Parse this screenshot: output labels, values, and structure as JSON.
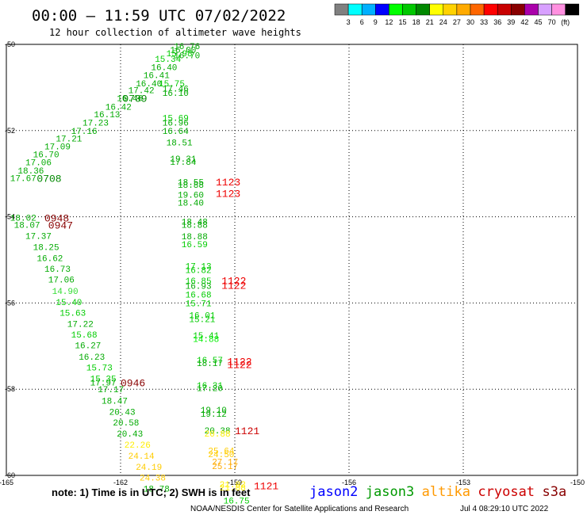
{
  "header": {
    "title": "00:00 – 11:59 UTC 07/02/2022",
    "subtitle": "12 hour collection of altimeter wave heights"
  },
  "legend": {
    "colors": [
      "#808080",
      "#00ffff",
      "#00b0ff",
      "#0000ff",
      "#00ff00",
      "#00c800",
      "#008800",
      "#ffff00",
      "#ffd200",
      "#ffaa00",
      "#ff6600",
      "#ff0000",
      "#c80000",
      "#880000",
      "#aa00aa",
      "#d8a0ff",
      "#ff90e0",
      "#000000"
    ],
    "labels": [
      "3",
      "6",
      "9",
      "12",
      "15",
      "18",
      "21",
      "24",
      "27",
      "30",
      "33",
      "36",
      "39",
      "42",
      "45",
      "70",
      "(ft)"
    ]
  },
  "footer": {
    "note": "note: 1) Time is in UTC; 2) SWH is in feet",
    "credit": "NOAA/NESDIS Center for Satellite Applications and Research",
    "timestamp": "Jul  4 08:29:10 UTC 2022",
    "satellites": [
      {
        "name": "jason2",
        "color": "#0000ff"
      },
      {
        "name": "jason3",
        "color": "#009900"
      },
      {
        "name": "altika",
        "color": "#ff9900"
      },
      {
        "name": "cryosat",
        "color": "#cc0000"
      },
      {
        "name": "s3a",
        "color": "#880000"
      }
    ]
  },
  "chart_data": {
    "type": "scatter",
    "xlim": [
      -165,
      -150
    ],
    "ylim": [
      -60,
      -50
    ],
    "x_ticks": [
      "-165",
      "-162",
      "-159",
      "-156",
      "-153",
      "-150"
    ],
    "y_ticks": [
      "-50",
      "-52",
      "-54",
      "-56",
      "-58",
      "-60"
    ],
    "grid": true,
    "points": [
      {
        "x": -160.6,
        "y": -50.04,
        "t": "16.76",
        "c": "#00aa00"
      },
      {
        "x": -160.7,
        "y": -50.12,
        "t": "16.00",
        "c": "#00aa00"
      },
      {
        "x": -160.8,
        "y": -50.2,
        "t": "15.98",
        "c": "#00cc00"
      },
      {
        "x": -160.6,
        "y": -50.25,
        "t": "16.70",
        "c": "#00aa00"
      },
      {
        "x": -161.1,
        "y": -50.33,
        "t": "15.34",
        "c": "#00cc00"
      },
      {
        "x": -161.2,
        "y": -50.52,
        "t": "16.40",
        "c": "#00aa00"
      },
      {
        "x": -161.4,
        "y": -50.71,
        "t": "16.41",
        "c": "#00aa00"
      },
      {
        "x": -161.6,
        "y": -50.9,
        "t": "16.40",
        "c": "#00aa00"
      },
      {
        "x": -161.8,
        "y": -51.06,
        "t": "17.42",
        "c": "#00aa00"
      },
      {
        "x": -162.1,
        "y": -51.24,
        "t": "16.46",
        "c": "#00aa00"
      },
      {
        "x": -162.4,
        "y": -51.44,
        "t": "16.42",
        "c": "#00aa00"
      },
      {
        "x": -162.7,
        "y": -51.62,
        "t": "16.13",
        "c": "#00aa00"
      },
      {
        "x": -163.0,
        "y": -51.81,
        "t": "17.23",
        "c": "#00aa00"
      },
      {
        "x": -163.3,
        "y": -52.0,
        "t": "17.16",
        "c": "#00aa00"
      },
      {
        "x": -163.7,
        "y": -52.18,
        "t": "17.21",
        "c": "#00aa00"
      },
      {
        "x": -164.0,
        "y": -52.36,
        "t": "17.09",
        "c": "#00aa00"
      },
      {
        "x": -164.3,
        "y": -52.55,
        "t": "16.70",
        "c": "#00aa00"
      },
      {
        "x": -164.5,
        "y": -52.73,
        "t": "17.06",
        "c": "#00aa00"
      },
      {
        "x": -164.7,
        "y": -52.92,
        "t": "18.36",
        "c": "#00aa00"
      },
      {
        "x": -164.9,
        "y": -53.1,
        "t": "17.67",
        "c": "#00aa00"
      },
      {
        "x": -161.0,
        "y": -50.9,
        "t": "15.75",
        "c": "#00cc00"
      },
      {
        "x": -160.9,
        "y": -51.02,
        "t": "17.46",
        "c": "#00aa00"
      },
      {
        "x": -160.9,
        "y": -51.12,
        "t": "16.10",
        "c": "#00aa00"
      },
      {
        "x": -160.9,
        "y": -51.7,
        "t": "15.69",
        "c": "#00cc00"
      },
      {
        "x": -160.9,
        "y": -51.81,
        "t": "16.96",
        "c": "#00aa00"
      },
      {
        "x": -160.9,
        "y": -52.0,
        "t": "16.64",
        "c": "#00aa00"
      },
      {
        "x": -160.8,
        "y": -52.27,
        "t": "18.51",
        "c": "#00aa00"
      },
      {
        "x": -160.7,
        "y": -52.65,
        "t": "19.31",
        "c": "#00aa00"
      },
      {
        "x": -160.7,
        "y": -52.72,
        "t": "17.84",
        "c": "#00aa00"
      },
      {
        "x": -160.5,
        "y": -53.19,
        "t": "18.55",
        "c": "#00aa00"
      },
      {
        "x": -160.5,
        "y": -53.25,
        "t": "18.88",
        "c": "#00aa00"
      },
      {
        "x": -160.5,
        "y": -53.48,
        "t": "19.60",
        "c": "#00aa00"
      },
      {
        "x": -160.5,
        "y": -53.67,
        "t": "18.40",
        "c": "#00aa00"
      },
      {
        "x": -160.4,
        "y": -54.11,
        "t": "18.48",
        "c": "#00aa00"
      },
      {
        "x": -160.4,
        "y": -54.18,
        "t": "18.88",
        "c": "#00aa00"
      },
      {
        "x": -160.4,
        "y": -54.45,
        "t": "18.88",
        "c": "#00aa00"
      },
      {
        "x": -160.4,
        "y": -54.63,
        "t": "16.59",
        "c": "#00cc00"
      },
      {
        "x": -160.3,
        "y": -55.14,
        "t": "17.13",
        "c": "#00cc00"
      },
      {
        "x": -160.3,
        "y": -55.23,
        "t": "16.82",
        "c": "#00cc00"
      },
      {
        "x": -160.3,
        "y": -55.48,
        "t": "16.85",
        "c": "#00cc00"
      },
      {
        "x": -160.3,
        "y": -55.6,
        "t": "16.93",
        "c": "#00aa00"
      },
      {
        "x": -160.3,
        "y": -55.8,
        "t": "16.68",
        "c": "#00cc00"
      },
      {
        "x": -160.3,
        "y": -56.0,
        "t": "15.71",
        "c": "#00cc00"
      },
      {
        "x": -160.2,
        "y": -56.28,
        "t": "16.01",
        "c": "#00cc00"
      },
      {
        "x": -160.2,
        "y": -56.37,
        "t": "15.21",
        "c": "#00cc00"
      },
      {
        "x": -160.1,
        "y": -56.75,
        "t": "15.41",
        "c": "#00cc00"
      },
      {
        "x": -160.1,
        "y": -56.83,
        "t": "14.88",
        "c": "#00ee00"
      },
      {
        "x": -160.0,
        "y": -57.32,
        "t": "16.57",
        "c": "#00cc00"
      },
      {
        "x": -160.0,
        "y": -57.39,
        "t": "18.17",
        "c": "#00aa00"
      },
      {
        "x": -160.0,
        "y": -57.9,
        "t": "16.31",
        "c": "#00cc00"
      },
      {
        "x": -160.0,
        "y": -57.97,
        "t": "17.20",
        "c": "#00aa00"
      },
      {
        "x": -159.9,
        "y": -58.47,
        "t": "19.10",
        "c": "#00aa00"
      },
      {
        "x": -159.9,
        "y": -58.57,
        "t": "19.12",
        "c": "#00aa00"
      },
      {
        "x": -159.8,
        "y": -58.95,
        "t": "20.38",
        "c": "#00aa00"
      },
      {
        "x": -159.8,
        "y": -59.03,
        "t": "20.88",
        "c": "#ffee00"
      },
      {
        "x": -159.7,
        "y": -59.42,
        "t": "25.64",
        "c": "#ffcc00"
      },
      {
        "x": -159.7,
        "y": -59.5,
        "t": "24.50",
        "c": "#ffcc00"
      },
      {
        "x": -159.6,
        "y": -59.68,
        "t": "27.17",
        "c": "#ffaa00"
      },
      {
        "x": -159.6,
        "y": -59.78,
        "t": "25.17",
        "c": "#ffaa00"
      },
      {
        "x": -159.4,
        "y": -60.2,
        "t": "21.02",
        "c": "#ffee00"
      },
      {
        "x": -159.4,
        "y": -60.28,
        "t": "21.08",
        "c": "#ffee00"
      },
      {
        "x": -159.3,
        "y": -60.58,
        "t": "16.75",
        "c": "#00cc00"
      },
      {
        "x": -164.9,
        "y": -54.02,
        "t": "18.02",
        "c": "#00aa00"
      },
      {
        "x": -164.8,
        "y": -54.18,
        "t": "18.07",
        "c": "#00aa00"
      },
      {
        "x": -164.5,
        "y": -54.44,
        "t": "17.37",
        "c": "#00aa00"
      },
      {
        "x": -164.3,
        "y": -54.7,
        "t": "18.25",
        "c": "#00aa00"
      },
      {
        "x": -164.2,
        "y": -54.95,
        "t": "16.62",
        "c": "#00aa00"
      },
      {
        "x": -164.0,
        "y": -55.2,
        "t": "16.73",
        "c": "#00aa00"
      },
      {
        "x": -163.9,
        "y": -55.45,
        "t": "17.06",
        "c": "#00aa00"
      },
      {
        "x": -163.8,
        "y": -55.72,
        "t": "14.90",
        "c": "#33dd33"
      },
      {
        "x": -163.7,
        "y": -55.97,
        "t": "15.40",
        "c": "#00cc00"
      },
      {
        "x": -163.6,
        "y": -56.22,
        "t": "15.63",
        "c": "#00cc00"
      },
      {
        "x": -163.4,
        "y": -56.48,
        "t": "17.22",
        "c": "#00aa00"
      },
      {
        "x": -163.3,
        "y": -56.73,
        "t": "15.68",
        "c": "#00cc00"
      },
      {
        "x": -163.2,
        "y": -56.98,
        "t": "16.27",
        "c": "#00aa00"
      },
      {
        "x": -163.1,
        "y": -57.24,
        "t": "16.23",
        "c": "#00aa00"
      },
      {
        "x": -162.9,
        "y": -57.49,
        "t": "15.73",
        "c": "#00cc00"
      },
      {
        "x": -162.8,
        "y": -57.75,
        "t": "15.35",
        "c": "#00cc00"
      },
      {
        "x": -162.8,
        "y": -57.84,
        "t": "17.97",
        "c": "#00aa00"
      },
      {
        "x": -162.6,
        "y": -58.0,
        "t": "17.17",
        "c": "#00aa00"
      },
      {
        "x": -162.5,
        "y": -58.26,
        "t": "18.47",
        "c": "#00aa00"
      },
      {
        "x": -162.3,
        "y": -58.52,
        "t": "20.43",
        "c": "#00aa00"
      },
      {
        "x": -162.2,
        "y": -58.77,
        "t": "20.58",
        "c": "#00aa00"
      },
      {
        "x": -162.1,
        "y": -59.03,
        "t": "20.43",
        "c": "#00aa00"
      },
      {
        "x": -161.9,
        "y": -59.28,
        "t": "22.26",
        "c": "#ffee00"
      },
      {
        "x": -161.8,
        "y": -59.54,
        "t": "24.14",
        "c": "#ffcc00"
      },
      {
        "x": -161.6,
        "y": -59.8,
        "t": "24.19",
        "c": "#ffcc00"
      },
      {
        "x": -161.5,
        "y": -60.05,
        "t": "24.38",
        "c": "#ffcc00"
      },
      {
        "x": -161.4,
        "y": -60.3,
        "t": "18.78",
        "c": "#00aa00"
      }
    ],
    "pass_labels": [
      {
        "x": -161.95,
        "y": -51.24,
        "t": "0709",
        "c": "#008800"
      },
      {
        "x": -164.2,
        "y": -53.1,
        "t": "0708",
        "c": "#008800"
      },
      {
        "x": -159.5,
        "y": -53.18,
        "t": "1123",
        "c": "#ee0000"
      },
      {
        "x": -159.5,
        "y": -53.45,
        "t": "1123",
        "c": "#ee0000"
      },
      {
        "x": -164.0,
        "y": -54.02,
        "t": "0948",
        "c": "#880000"
      },
      {
        "x": -163.9,
        "y": -54.18,
        "t": "0947",
        "c": "#880000"
      },
      {
        "x": -159.35,
        "y": -55.47,
        "t": "1122",
        "c": "#ee0000"
      },
      {
        "x": -159.35,
        "y": -55.58,
        "t": "1122",
        "c": "#ee0000"
      },
      {
        "x": -159.2,
        "y": -57.34,
        "t": "1122",
        "c": "#ee0000"
      },
      {
        "x": -159.2,
        "y": -57.42,
        "t": "1122",
        "c": "#ee0000"
      },
      {
        "x": -162.0,
        "y": -57.84,
        "t": "0946",
        "c": "#880000"
      },
      {
        "x": -159.0,
        "y": -58.95,
        "t": "1121",
        "c": "#cc0000"
      },
      {
        "x": -158.5,
        "y": -60.23,
        "t": "1121",
        "c": "#ee0000"
      }
    ]
  }
}
